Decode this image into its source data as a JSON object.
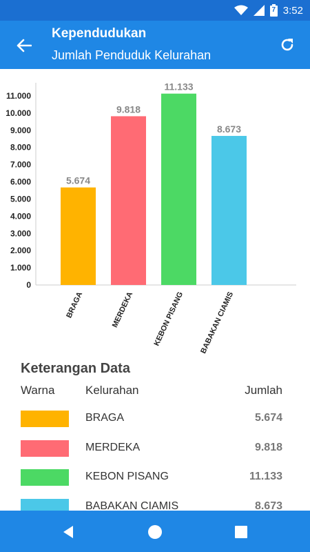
{
  "status": {
    "time": "3:52",
    "battery": "7"
  },
  "header": {
    "title": "Kependudukan",
    "subtitle": "Jumlah Penduduk Kelurahan"
  },
  "chart_data": {
    "type": "bar",
    "categories": [
      "BRAGA",
      "MERDEKA",
      "KEBON PISANG",
      "BABAKAN CIAMIS"
    ],
    "values": [
      5674,
      9818,
      11133,
      8673
    ],
    "value_labels": [
      "5.674",
      "9.818",
      "11.133",
      "8.673"
    ],
    "colors": [
      "#ffb300",
      "#ff6b74",
      "#4cd964",
      "#4bc8e8"
    ],
    "yticks": [
      0,
      1000,
      2000,
      3000,
      4000,
      5000,
      6000,
      7000,
      8000,
      9000,
      10000,
      11000
    ],
    "ytick_labels": [
      "0",
      "1.000",
      "2.000",
      "3.000",
      "4.000",
      "5.000",
      "6.000",
      "7.000",
      "8.000",
      "9.000",
      "10.000",
      "11.000"
    ],
    "ylim": [
      0,
      12000
    ],
    "title": "",
    "xlabel": "",
    "ylabel": ""
  },
  "legend": {
    "title": "Keterangan Data",
    "headers": {
      "warna": "Warna",
      "kelurahan": "Kelurahan",
      "jumlah": "Jumlah"
    },
    "rows": [
      {
        "name": "BRAGA",
        "value": "5.674",
        "color": "#ffb300"
      },
      {
        "name": "MERDEKA",
        "value": "9.818",
        "color": "#ff6b74"
      },
      {
        "name": "KEBON PISANG",
        "value": "11.133",
        "color": "#4cd964"
      },
      {
        "name": "BABAKAN CIAMIS",
        "value": "8.673",
        "color": "#4bc8e8"
      }
    ]
  },
  "icons": {
    "back": "back-arrow-icon",
    "refresh": "refresh-icon",
    "wifi": "wifi-icon",
    "signal": "signal-icon",
    "battery": "battery-icon",
    "nav_back": "nav-back-icon",
    "nav_home": "nav-home-icon",
    "nav_recents": "nav-recents-icon"
  }
}
